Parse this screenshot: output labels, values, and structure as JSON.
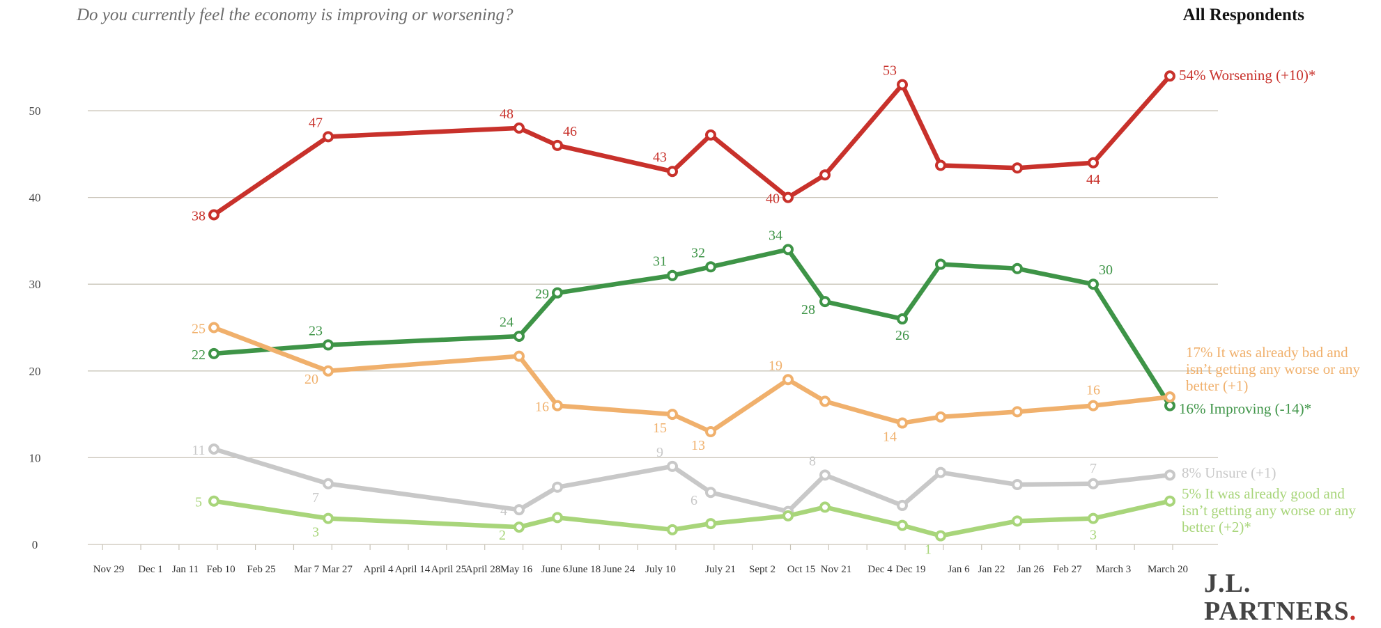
{
  "header": {
    "title": "Do you currently feel the economy is improving or worsening?",
    "subtitle": "All Respondents"
  },
  "logo": {
    "line1": "J.L.",
    "line2": "PARTNERS",
    "dot": "."
  },
  "chart_data": {
    "type": "line",
    "title": "Do you currently feel the economy is improving or worsening?",
    "subtitle": "All Respondents",
    "xlabel": "",
    "ylabel": "",
    "ylim": [
      0,
      55
    ],
    "y_ticks": [
      0,
      10,
      20,
      30,
      40,
      50
    ],
    "grid": "horizontal",
    "x_tick_labels": [
      "Nov 29",
      "Dec 1",
      "Jan 11",
      "Feb 10",
      "Feb 25",
      "Mar 7",
      "Mar 27",
      "April 4",
      "April 14",
      "April 25",
      "April 28",
      "May 16",
      "June 6",
      "June 18",
      "June 24",
      "July 10",
      "July 21",
      "Sept 2",
      "Oct 15",
      "Nov 21",
      "Dec 4",
      "Dec 19",
      "Jan 6",
      "Jan 22",
      "Jan 26",
      "Feb 27",
      "March 3",
      "March 20"
    ],
    "x": [
      "Feb 10",
      "Mar 27",
      "May 16",
      "June 6",
      "July 10",
      "July 21",
      "Oct 15",
      "Nov 21",
      "Dec 19",
      "Jan 6",
      "Jan 26",
      "March 3",
      "March 20"
    ],
    "series": [
      {
        "name": "54% Worsening (+10)*",
        "color": "#c8312b",
        "values": [
          38,
          47,
          48,
          46,
          43,
          47.2,
          40,
          42.6,
          53,
          43.7,
          43.4,
          44,
          54
        ],
        "labels": [
          "38",
          "47",
          "48",
          "46",
          "43",
          null,
          "40",
          null,
          "53",
          null,
          null,
          "44",
          null
        ]
      },
      {
        "name": "16% Improving (-14)*",
        "color": "#3e9447",
        "values": [
          22,
          23,
          24,
          29,
          31,
          32,
          34,
          28,
          26,
          32.3,
          31.8,
          30,
          16
        ],
        "labels": [
          "22",
          "23",
          "24",
          "29",
          "31",
          "32",
          "34",
          "28",
          "26",
          null,
          null,
          "30",
          null
        ]
      },
      {
        "name": "17% It was already bad and isn’t getting any worse or any better (+1)",
        "color": "#f0b06c",
        "values": [
          25,
          20,
          21.7,
          16,
          15,
          13,
          19,
          16.5,
          14,
          14.7,
          15.3,
          16,
          17
        ],
        "labels": [
          "25",
          "20",
          null,
          "16",
          "15",
          "13",
          "19",
          null,
          "14",
          null,
          null,
          "16",
          null
        ]
      },
      {
        "name": "8% Unsure (+1)",
        "color": "#c8c8c8",
        "values": [
          11,
          7,
          4,
          6.6,
          9,
          6,
          3.8,
          8,
          4.5,
          8.3,
          6.9,
          7,
          8
        ],
        "labels": [
          "11",
          "7",
          "4",
          null,
          "9",
          "6",
          null,
          "8",
          null,
          null,
          null,
          "7",
          null
        ]
      },
      {
        "name": "5% It was already good and isn’t getting any worse or any better (+2)*",
        "color": "#a8d57a",
        "values": [
          5,
          3,
          2,
          3.1,
          1.7,
          2.4,
          3.3,
          4.3,
          2.2,
          1,
          2.7,
          3,
          5
        ],
        "labels": [
          "5",
          "3",
          "2",
          null,
          null,
          null,
          null,
          null,
          null,
          "1",
          null,
          "3",
          null
        ]
      }
    ]
  }
}
